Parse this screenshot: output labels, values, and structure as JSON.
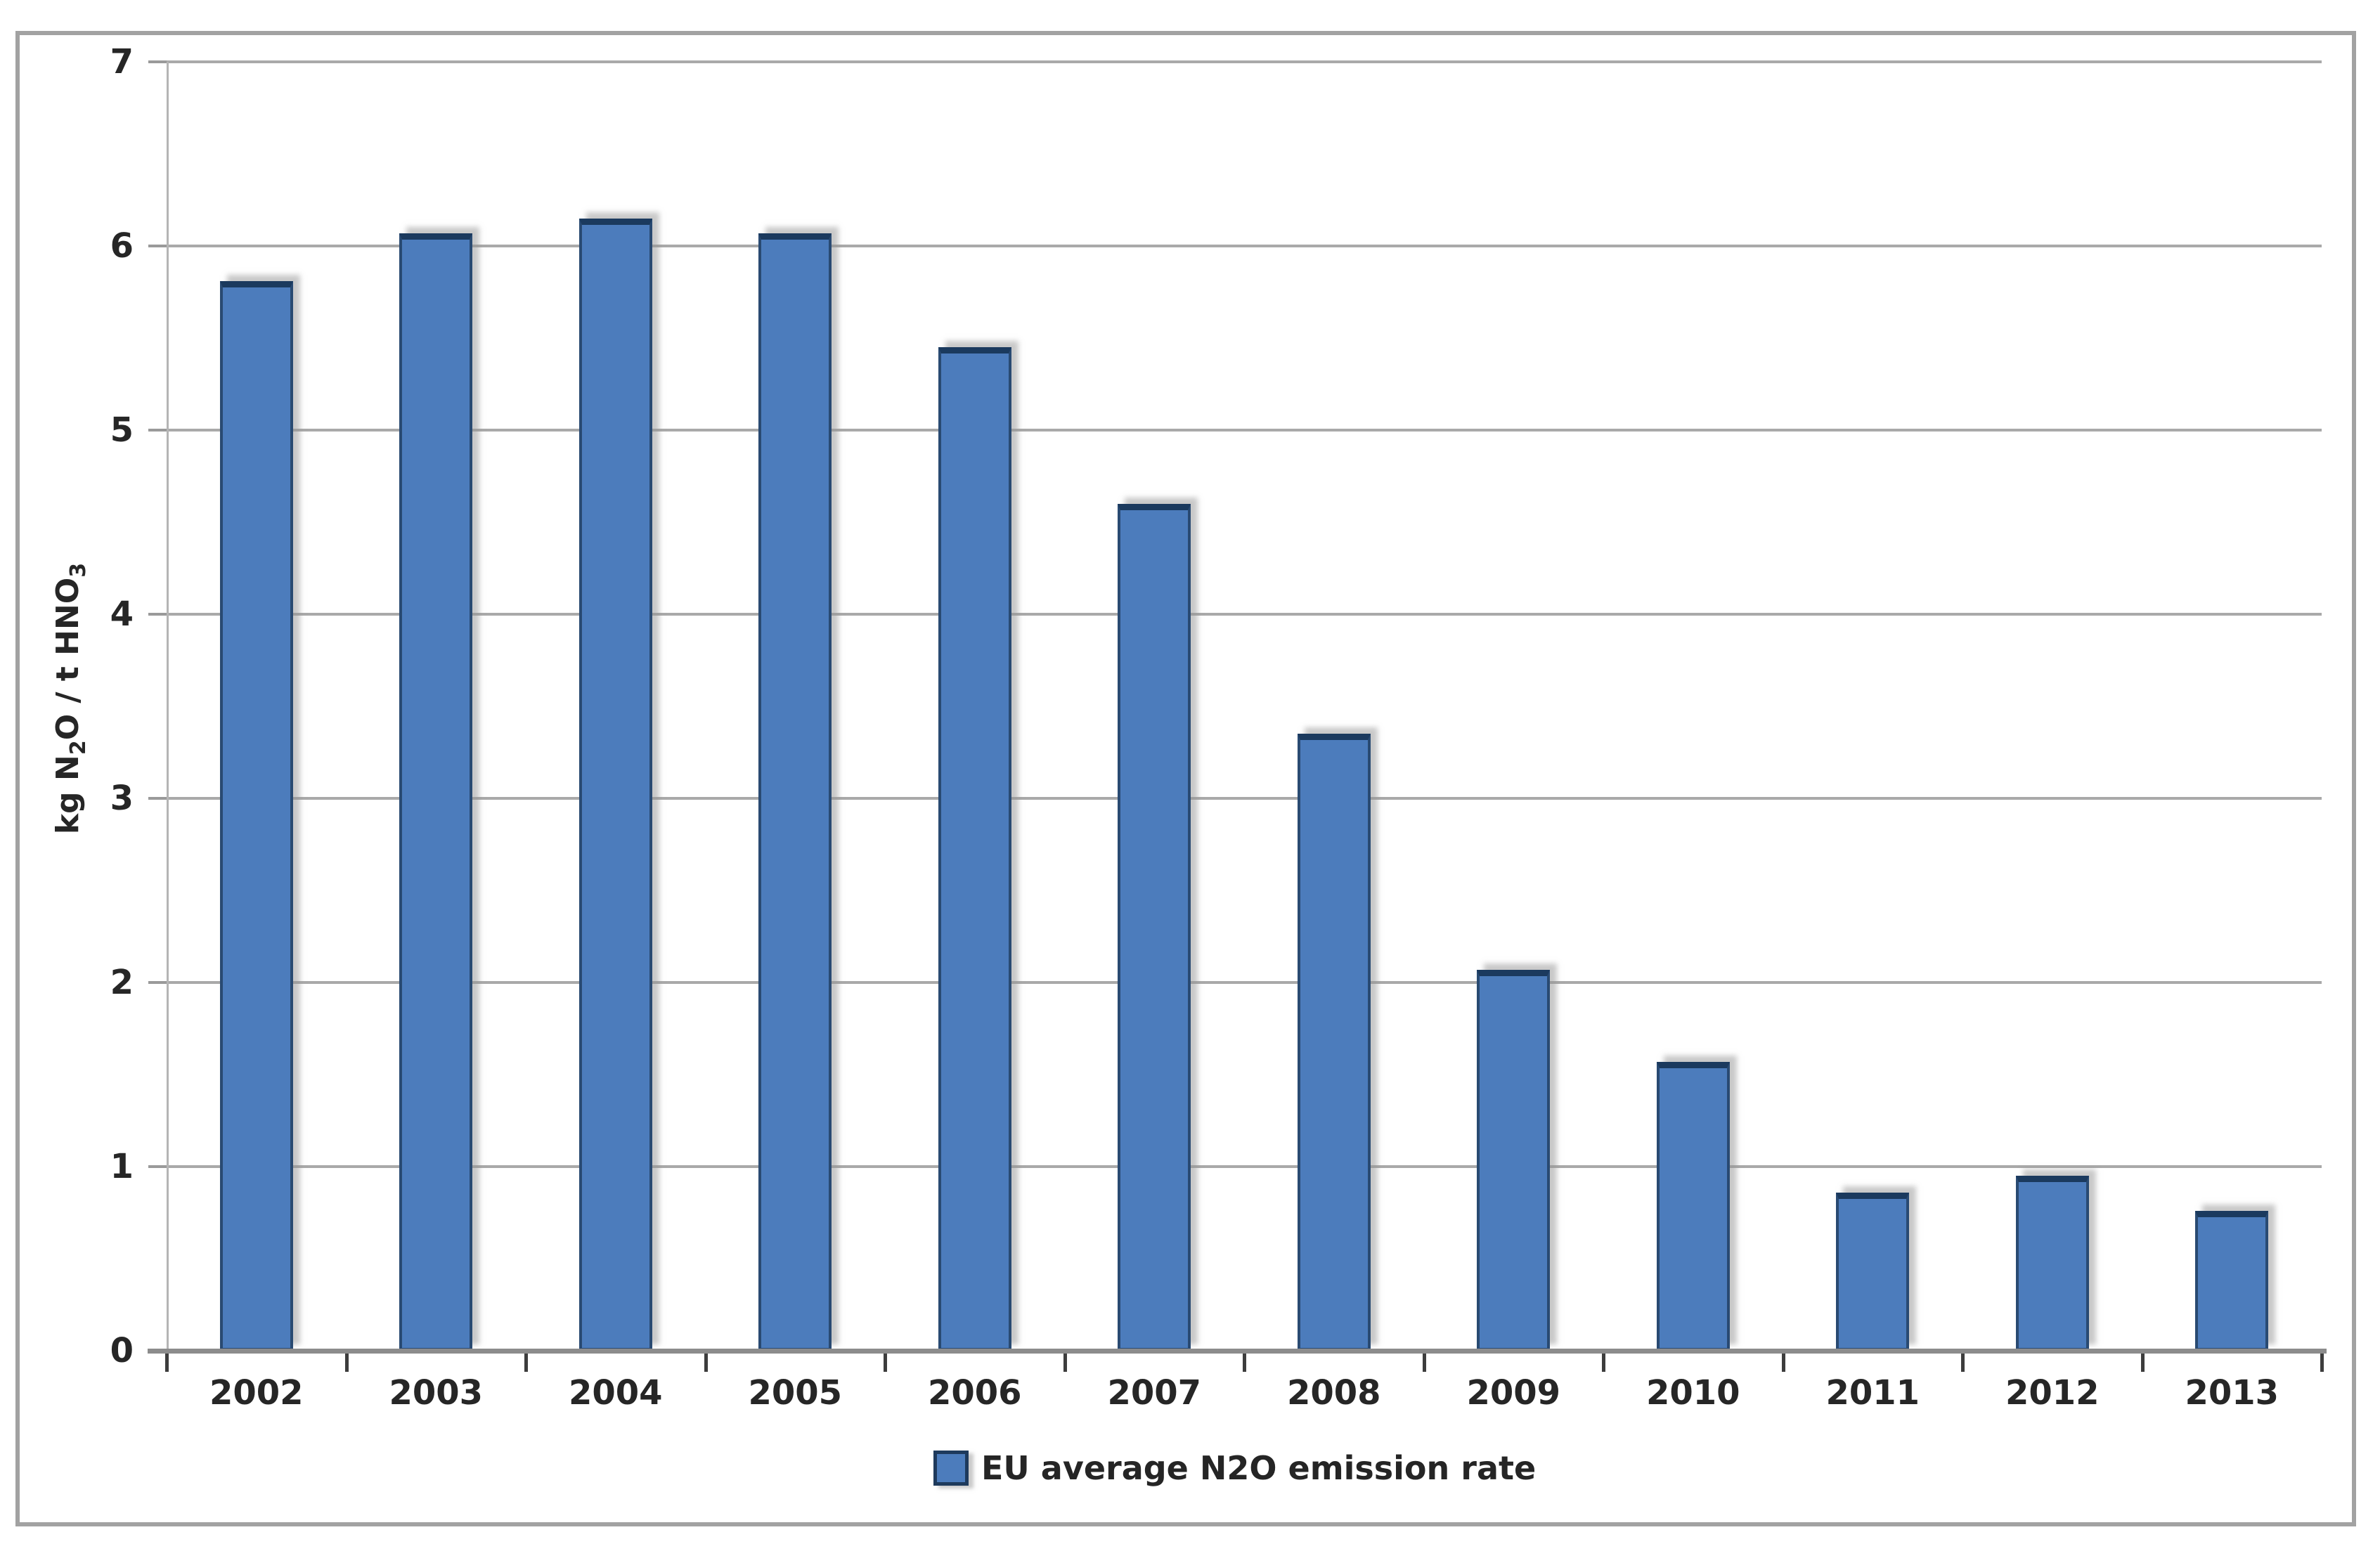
{
  "figure": {
    "background": "#ffffff",
    "frame_border_color": "#a2a2a2",
    "gridline_color": "#a9a9a9",
    "axis_line_color": "#8c8c8c",
    "tick_label_color": "#262626"
  },
  "chart_data": {
    "type": "bar",
    "title": "",
    "categories": [
      "2002",
      "2003",
      "2004",
      "2005",
      "2006",
      "2007",
      "2008",
      "2009",
      "2010",
      "2011",
      "2012",
      "2013"
    ],
    "series": [
      {
        "name": "EU average N2O emission rate",
        "values": [
          5.81,
          6.07,
          6.15,
          6.07,
          5.45,
          4.6,
          3.35,
          2.07,
          1.57,
          0.86,
          0.95,
          0.76
        ]
      }
    ],
    "xlabel": "",
    "ylabel": "kg N₂O / t HNO₃",
    "ylabel_parts": [
      {
        "text": "kg N",
        "sub": false
      },
      {
        "text": "2",
        "sub": true
      },
      {
        "text": "O / t HNO",
        "sub": false
      },
      {
        "text": "3",
        "sub": true
      }
    ],
    "ylim": [
      0,
      7
    ],
    "yticks": [
      0,
      1,
      2,
      3,
      4,
      5,
      6,
      7
    ],
    "grid": true,
    "legend_position": "bottom-center",
    "bar_fill_color": "#4c7cbc",
    "bar_border_color": "#294a72",
    "bar_top_color": "#1b3a5e"
  },
  "legend": {
    "label": "EU average N2O emission rate",
    "marker_color": "#4c7cbc"
  }
}
